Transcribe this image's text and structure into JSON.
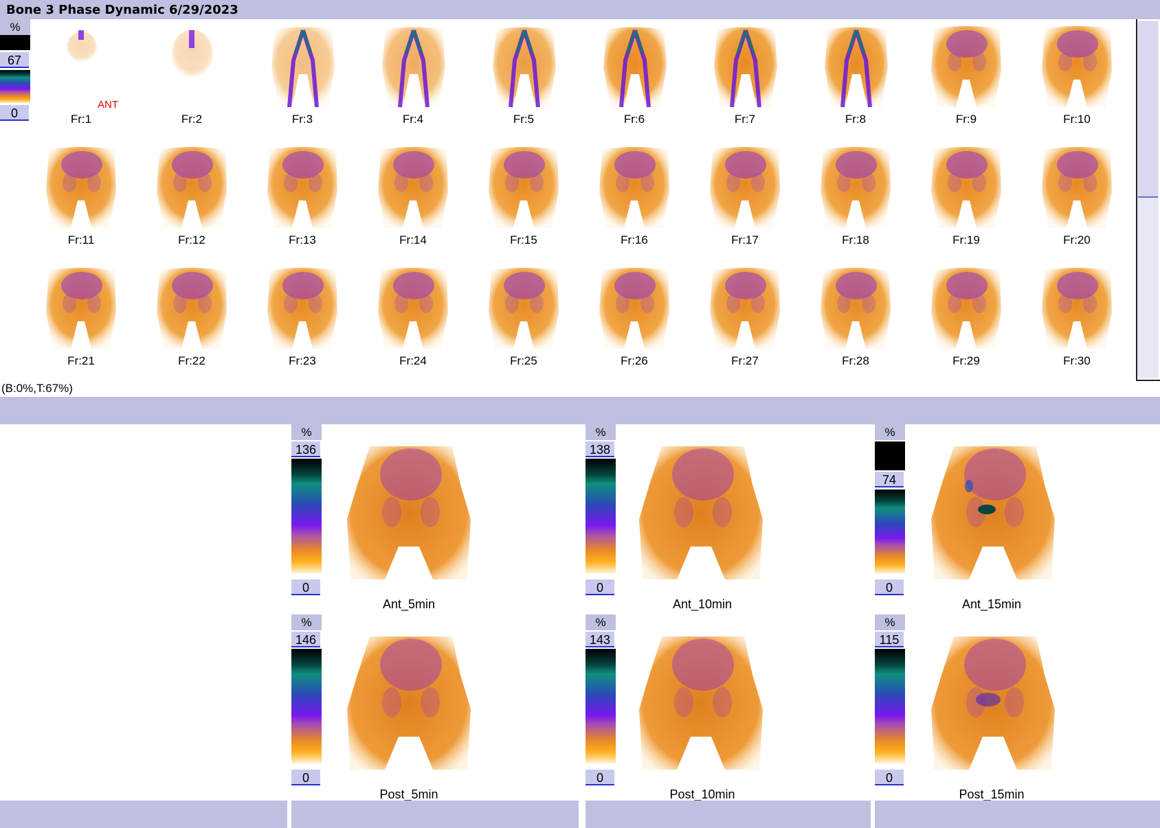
{
  "window": {
    "title": "Bone 3 Phase Dynamic 6/29/2023"
  },
  "dynamic": {
    "view_label": "ANT",
    "colorscale": {
      "percent_label": "%",
      "max": "67",
      "min": "0"
    },
    "frames": [
      "Fr:1",
      "Fr:2",
      "Fr:3",
      "Fr:4",
      "Fr:5",
      "Fr:6",
      "Fr:7",
      "Fr:8",
      "Fr:9",
      "Fr:10",
      "Fr:11",
      "Fr:12",
      "Fr:13",
      "Fr:14",
      "Fr:15",
      "Fr:16",
      "Fr:17",
      "Fr:18",
      "Fr:19",
      "Fr:20",
      "Fr:21",
      "Fr:22",
      "Fr:23",
      "Fr:24",
      "Fr:25",
      "Fr:26",
      "Fr:27",
      "Fr:28",
      "Fr:29",
      "Fr:30"
    ],
    "scale_text": "(B:0%,T:67%)"
  },
  "statics": [
    {
      "label": "Ant_5min",
      "percent_label": "%",
      "max": "136",
      "min": "0"
    },
    {
      "label": "Ant_10min",
      "percent_label": "%",
      "max": "138",
      "min": "0"
    },
    {
      "label": "Ant_15min",
      "percent_label": "%",
      "max": "74",
      "min": "0"
    },
    {
      "label": "Post_5min",
      "percent_label": "%",
      "max": "146",
      "min": "0"
    },
    {
      "label": "Post_10min",
      "percent_label": "%",
      "max": "143",
      "min": "0"
    },
    {
      "label": "Post_15min",
      "percent_label": "%",
      "max": "115",
      "min": "0"
    }
  ],
  "colors": {
    "panel": "#bfc0e0",
    "value_box": "#c8c9ec",
    "value_underline": "#2b2ed0",
    "ant_label": "#e00000"
  }
}
